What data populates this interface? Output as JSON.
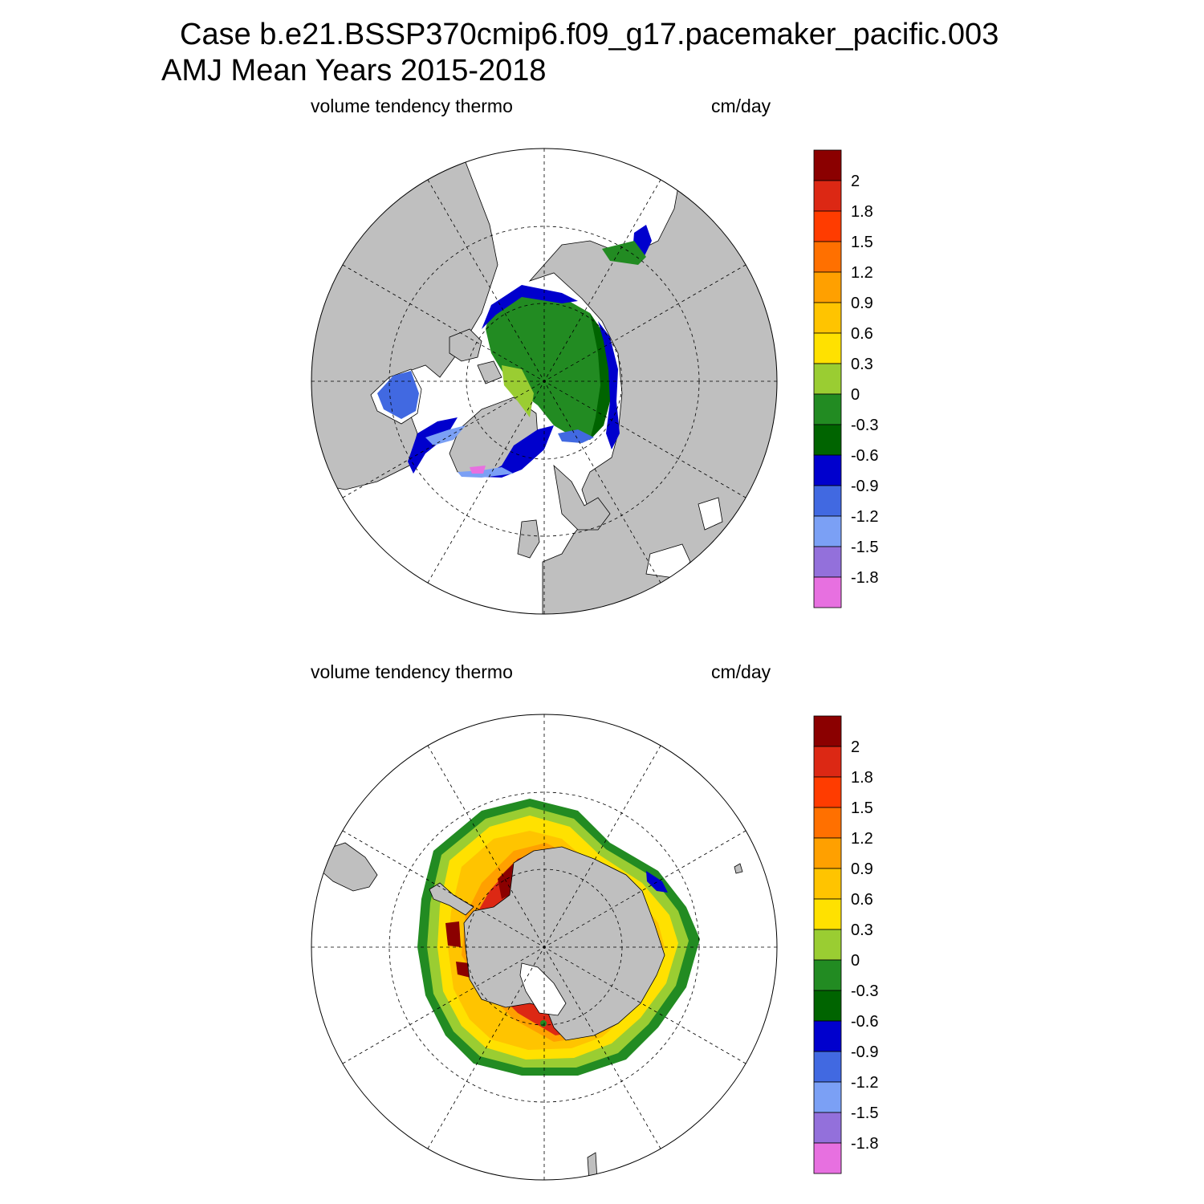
{
  "title": {
    "line1": "Case b.e21.BSSP370cmip6.f09_g17.pacemaker_pacific.003",
    "line2": "AMJ Mean   Years 2015-2018"
  },
  "colors": {
    "land": "#bfbfbf",
    "ocean": "#ffffff",
    "levels": [
      "#e770e0",
      "#9370db",
      "#7ba0f5",
      "#4169e1",
      "#0000cd",
      "#006400",
      "#228b22",
      "#9acd32",
      "#ffe100",
      "#ffc400",
      "#ffa000",
      "#ff7000",
      "#ff3c00",
      "#dc2814",
      "#8b0000"
    ]
  },
  "colorbar": {
    "labels": [
      "2",
      "1.8",
      "1.5",
      "1.2",
      "0.9",
      "0.6",
      "0.3",
      "0",
      "-0.3",
      "-0.6",
      "-0.9",
      "-1.2",
      "-1.5",
      "-1.8"
    ]
  },
  "panels": [
    {
      "id": "north",
      "left_label": "volume tendency thermo",
      "right_label": "cm/day"
    },
    {
      "id": "south",
      "left_label": "volume tendency thermo",
      "right_label": "cm/day"
    }
  ]
}
